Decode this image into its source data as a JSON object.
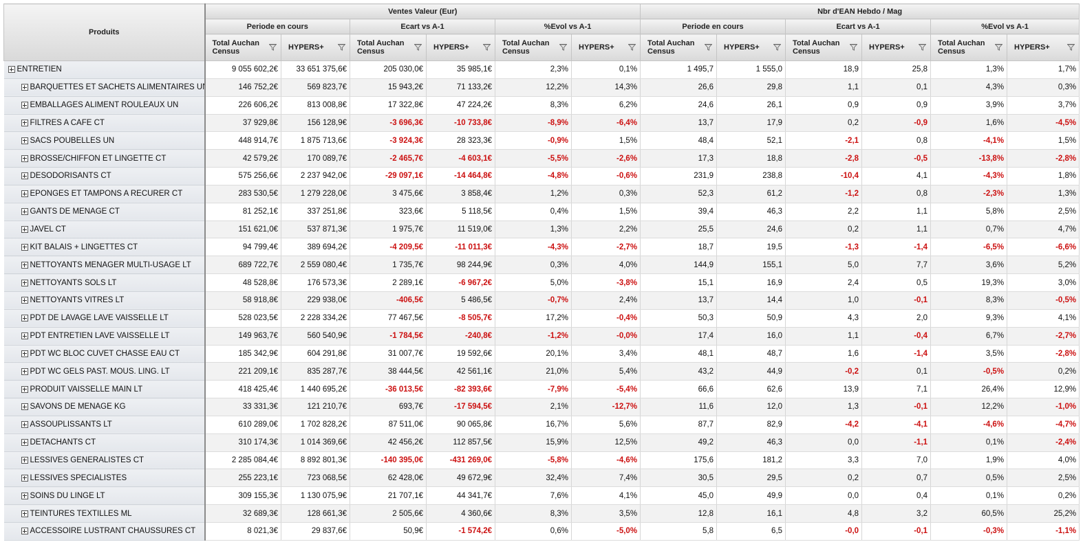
{
  "header": {
    "products_label": "Produits",
    "groups": [
      "Ventes Valeur (Eur)",
      "Nbr d'EAN Hebdo / Mag"
    ],
    "subgroups": [
      "Periode en cours",
      "Ecart vs A-1",
      "%Evol vs A-1",
      "Periode en cours",
      "Ecart vs A-1",
      "%Evol vs A-1"
    ],
    "columns": [
      "Total Auchan Census",
      "HYPERS+",
      "Total Auchan Census",
      "HYPERS+",
      "Total Auchan Census",
      "HYPERS+",
      "Total Auchan Census",
      "HYPERS+",
      "Total Auchan Census",
      "HYPERS+",
      "Total Auchan Census",
      "HYPERS+"
    ]
  },
  "rows": [
    {
      "name": "ENTRETIEN",
      "level": 0,
      "values": [
        "9 055 602,2€",
        "33 651 375,6€",
        "205 030,0€",
        "35 985,1€",
        "2,3%",
        "0,1%",
        "1 495,7",
        "1 555,0",
        "18,9",
        "25,8",
        "1,3%",
        "1,7%"
      ]
    },
    {
      "name": "BARQUETTES ET SACHETS ALIMENTAIRES UN",
      "level": 1,
      "values": [
        "146 752,2€",
        "569 823,7€",
        "15 943,2€",
        "71 133,2€",
        "12,2%",
        "14,3%",
        "26,6",
        "29,8",
        "1,1",
        "0,1",
        "4,3%",
        "0,3%"
      ]
    },
    {
      "name": "EMBALLAGES ALIMENT ROULEAUX UN",
      "level": 1,
      "values": [
        "226 606,2€",
        "813 008,8€",
        "17 322,8€",
        "47 224,2€",
        "8,3%",
        "6,2%",
        "24,6",
        "26,1",
        "0,9",
        "0,9",
        "3,9%",
        "3,7%"
      ]
    },
    {
      "name": "FILTRES A CAFE CT",
      "level": 1,
      "values": [
        "37 929,8€",
        "156 128,9€",
        "-3 696,3€",
        "-10 733,8€",
        "-8,9%",
        "-6,4%",
        "13,7",
        "17,9",
        "0,2",
        "-0,9",
        "1,6%",
        "-4,5%"
      ]
    },
    {
      "name": "SACS POUBELLES UN",
      "level": 1,
      "values": [
        "448 914,7€",
        "1 875 713,6€",
        "-3 924,3€",
        "28 323,3€",
        "-0,9%",
        "1,5%",
        "48,4",
        "52,1",
        "-2,1",
        "0,8",
        "-4,1%",
        "1,5%"
      ]
    },
    {
      "name": "BROSSE/CHIFFON ET LINGETTE CT",
      "level": 1,
      "values": [
        "42 579,2€",
        "170 089,7€",
        "-2 465,7€",
        "-4 603,1€",
        "-5,5%",
        "-2,6%",
        "17,3",
        "18,8",
        "-2,8",
        "-0,5",
        "-13,8%",
        "-2,8%"
      ]
    },
    {
      "name": "DESODORISANTS CT",
      "level": 1,
      "values": [
        "575 256,6€",
        "2 237 942,0€",
        "-29 097,1€",
        "-14 464,8€",
        "-4,8%",
        "-0,6%",
        "231,9",
        "238,8",
        "-10,4",
        "4,1",
        "-4,3%",
        "1,8%"
      ]
    },
    {
      "name": "EPONGES ET TAMPONS A RECURER CT",
      "level": 1,
      "values": [
        "283 530,5€",
        "1 279 228,0€",
        "3 475,6€",
        "3 858,4€",
        "1,2%",
        "0,3%",
        "52,3",
        "61,2",
        "-1,2",
        "0,8",
        "-2,3%",
        "1,3%"
      ]
    },
    {
      "name": "GANTS DE MENAGE CT",
      "level": 1,
      "values": [
        "81 252,1€",
        "337 251,8€",
        "323,6€",
        "5 118,5€",
        "0,4%",
        "1,5%",
        "39,4",
        "46,3",
        "2,2",
        "1,1",
        "5,8%",
        "2,5%"
      ]
    },
    {
      "name": "JAVEL CT",
      "level": 1,
      "values": [
        "151 621,0€",
        "537 871,3€",
        "1 975,7€",
        "11 519,0€",
        "1,3%",
        "2,2%",
        "25,5",
        "24,6",
        "0,2",
        "1,1",
        "0,7%",
        "4,7%"
      ]
    },
    {
      "name": "KIT BALAIS + LINGETTES CT",
      "level": 1,
      "values": [
        "94 799,4€",
        "389 694,2€",
        "-4 209,5€",
        "-11 011,3€",
        "-4,3%",
        "-2,7%",
        "18,7",
        "19,5",
        "-1,3",
        "-1,4",
        "-6,5%",
        "-6,6%"
      ]
    },
    {
      "name": "NETTOYANTS MENAGER MULTI-USAGE LT",
      "level": 1,
      "values": [
        "689 722,7€",
        "2 559 080,4€",
        "1 735,7€",
        "98 244,9€",
        "0,3%",
        "4,0%",
        "144,9",
        "155,1",
        "5,0",
        "7,7",
        "3,6%",
        "5,2%"
      ]
    },
    {
      "name": "NETTOYANTS SOLS LT",
      "level": 1,
      "values": [
        "48 528,8€",
        "176 573,3€",
        "2 289,1€",
        "-6 967,2€",
        "5,0%",
        "-3,8%",
        "15,1",
        "16,9",
        "2,4",
        "0,5",
        "19,3%",
        "3,0%"
      ]
    },
    {
      "name": "NETTOYANTS VITRES LT",
      "level": 1,
      "values": [
        "58 918,8€",
        "229 938,0€",
        "-406,5€",
        "5 486,5€",
        "-0,7%",
        "2,4%",
        "13,7",
        "14,4",
        "1,0",
        "-0,1",
        "8,3%",
        "-0,5%"
      ]
    },
    {
      "name": "PDT DE LAVAGE LAVE VAISSELLE LT",
      "level": 1,
      "values": [
        "528 023,5€",
        "2 228 334,2€",
        "77 467,5€",
        "-8 505,7€",
        "17,2%",
        "-0,4%",
        "50,3",
        "50,9",
        "4,3",
        "2,0",
        "9,3%",
        "4,1%"
      ]
    },
    {
      "name": "PDT ENTRETIEN LAVE VAISSELLE LT",
      "level": 1,
      "values": [
        "149 963,7€",
        "560 540,9€",
        "-1 784,5€",
        "-240,8€",
        "-1,2%",
        "-0,0%",
        "17,4",
        "16,0",
        "1,1",
        "-0,4",
        "6,7%",
        "-2,7%"
      ]
    },
    {
      "name": "PDT WC BLOC CUVET CHASSE EAU CT",
      "level": 1,
      "values": [
        "185 342,9€",
        "604 291,8€",
        "31 007,7€",
        "19 592,6€",
        "20,1%",
        "3,4%",
        "48,1",
        "48,7",
        "1,6",
        "-1,4",
        "3,5%",
        "-2,8%"
      ]
    },
    {
      "name": "PDT WC GELS PAST. MOUS. LING. LT",
      "level": 1,
      "values": [
        "221 209,1€",
        "835 287,7€",
        "38 444,5€",
        "42 561,1€",
        "21,0%",
        "5,4%",
        "43,2",
        "44,9",
        "-0,2",
        "0,1",
        "-0,5%",
        "0,2%"
      ]
    },
    {
      "name": "PRODUIT VAISSELLE MAIN LT",
      "level": 1,
      "values": [
        "418 425,4€",
        "1 440 695,2€",
        "-36 013,5€",
        "-82 393,6€",
        "-7,9%",
        "-5,4%",
        "66,6",
        "62,6",
        "13,9",
        "7,1",
        "26,4%",
        "12,9%"
      ]
    },
    {
      "name": "SAVONS DE MENAGE KG",
      "level": 1,
      "values": [
        "33 331,3€",
        "121 210,7€",
        "693,7€",
        "-17 594,5€",
        "2,1%",
        "-12,7%",
        "11,6",
        "12,0",
        "1,3",
        "-0,1",
        "12,2%",
        "-1,0%"
      ]
    },
    {
      "name": "ASSOUPLISSANTS LT",
      "level": 1,
      "values": [
        "610 289,0€",
        "1 702 828,2€",
        "87 511,0€",
        "90 065,8€",
        "16,7%",
        "5,6%",
        "87,7",
        "82,9",
        "-4,2",
        "-4,1",
        "-4,6%",
        "-4,7%"
      ]
    },
    {
      "name": "DETACHANTS CT",
      "level": 1,
      "values": [
        "310 174,3€",
        "1 014 369,6€",
        "42 456,2€",
        "112 857,5€",
        "15,9%",
        "12,5%",
        "49,2",
        "46,3",
        "0,0",
        "-1,1",
        "0,1%",
        "-2,4%"
      ]
    },
    {
      "name": "LESSIVES GENERALISTES CT",
      "level": 1,
      "values": [
        "2 285 084,4€",
        "8 892 801,3€",
        "-140 395,0€",
        "-431 269,0€",
        "-5,8%",
        "-4,6%",
        "175,6",
        "181,2",
        "3,3",
        "7,0",
        "1,9%",
        "4,0%"
      ]
    },
    {
      "name": "LESSIVES SPECIALISTES",
      "level": 1,
      "values": [
        "255 223,1€",
        "723 068,5€",
        "62 428,0€",
        "49 672,9€",
        "32,4%",
        "7,4%",
        "30,5",
        "29,5",
        "0,2",
        "0,7",
        "0,5%",
        "2,5%"
      ]
    },
    {
      "name": "SOINS DU LINGE LT",
      "level": 1,
      "values": [
        "309 155,3€",
        "1 130 075,9€",
        "21 707,1€",
        "44 341,7€",
        "7,6%",
        "4,1%",
        "45,0",
        "49,9",
        "0,0",
        "0,4",
        "0,1%",
        "0,2%"
      ]
    },
    {
      "name": "TEINTURES TEXTILLES ML",
      "level": 1,
      "values": [
        "32 689,3€",
        "128 661,3€",
        "2 505,6€",
        "4 360,6€",
        "8,3%",
        "3,5%",
        "12,8",
        "16,1",
        "4,8",
        "3,2",
        "60,5%",
        "25,2%"
      ]
    },
    {
      "name": "ACCESSOIRE LUSTRANT CHAUSSURES CT",
      "level": 1,
      "values": [
        "8 021,3€",
        "29 837,6€",
        "50,9€",
        "-1 574,2€",
        "0,6%",
        "-5,0%",
        "5,8",
        "6,5",
        "-0,0",
        "-0,1",
        "-0,3%",
        "-1,1%"
      ]
    }
  ],
  "colors": {
    "negative": "#cc1111",
    "header_bg": "#dcdcdc",
    "row_alt": "#f2f2f2",
    "product_cell_bg": "#e8ebef"
  },
  "icons": {
    "expand": "plus-box-icon",
    "filter": "filter-funnel-icon"
  }
}
